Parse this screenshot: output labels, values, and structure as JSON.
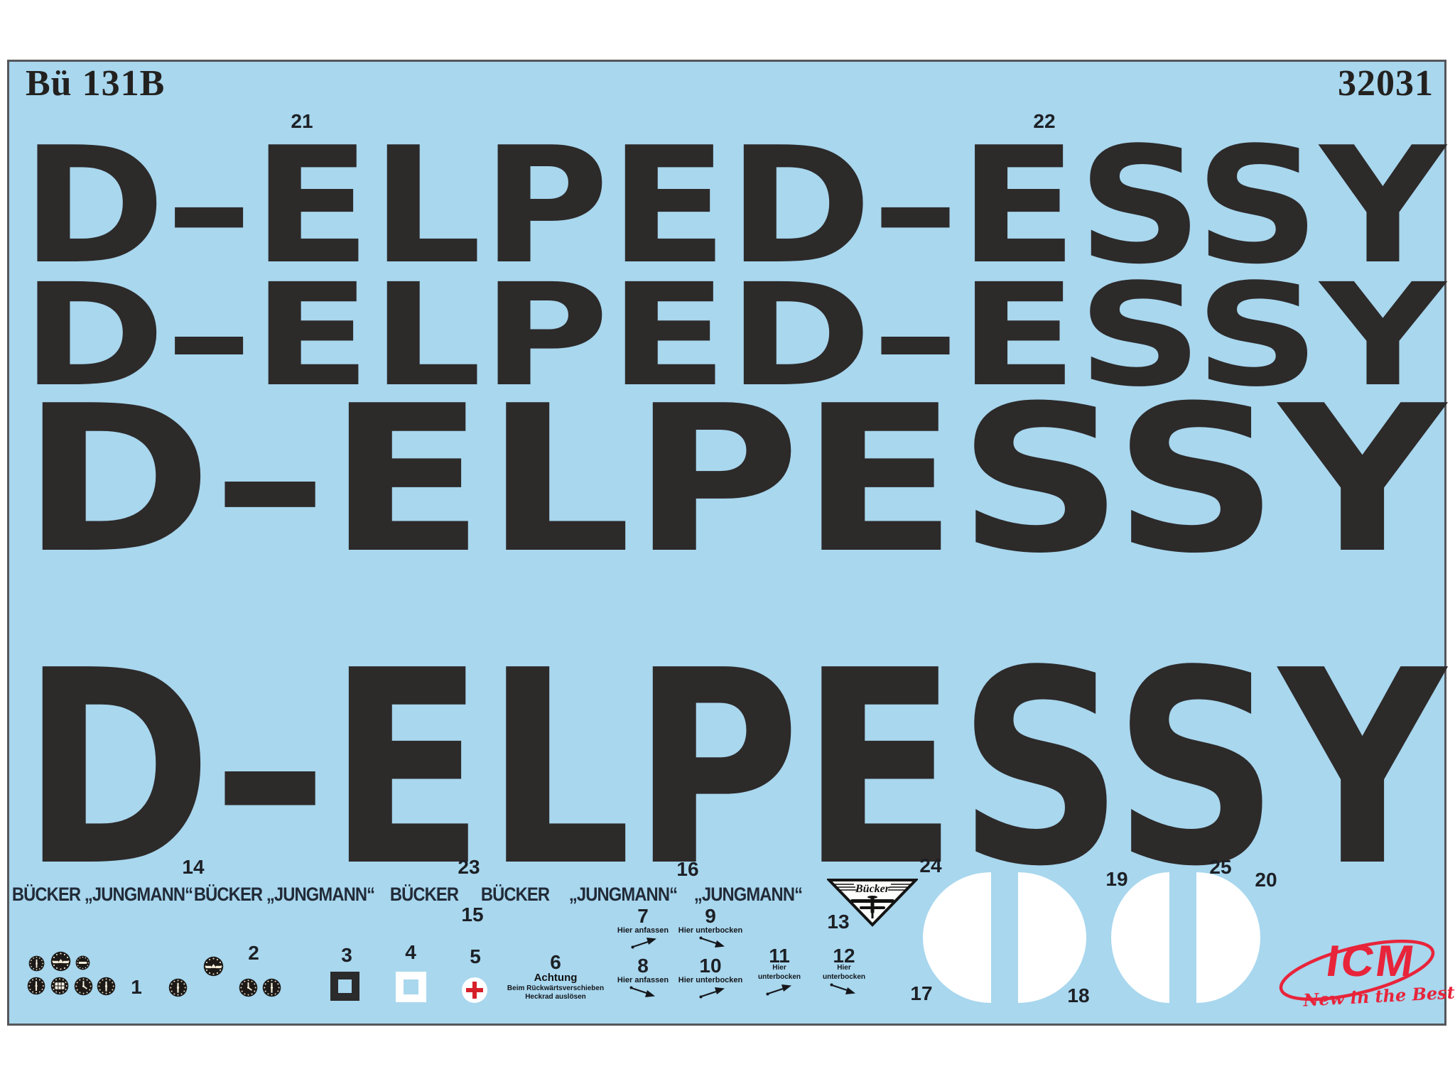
{
  "sheet": {
    "title": "Bü 131B",
    "product_code": "32031",
    "colors": {
      "film_blue": "#a8d7ee",
      "ink_black": "#2d2a2a",
      "brand_red": "#e8243a",
      "cross_red": "#d5202a"
    }
  },
  "registration_rows": [
    {
      "text": "D–ELPED–ESSY"
    },
    {
      "text": "D–ELPED–ESSY"
    },
    {
      "text": "D–ELPESSY"
    },
    {
      "text": "D–ELPESSY"
    }
  ],
  "numbers": {
    "n1": "1",
    "n2": "2",
    "n3": "3",
    "n4": "4",
    "n5": "5",
    "n6": "6",
    "n7": "7",
    "n8": "8",
    "n9": "9",
    "n10": "10",
    "n11": "11",
    "n12": "12",
    "n13": "13",
    "n14": "14",
    "n15": "15",
    "n16": "16",
    "n17": "17",
    "n18": "18",
    "n19": "19",
    "n20": "20",
    "n21": "21",
    "n22": "22",
    "n23": "23",
    "n24": "24",
    "n25": "25"
  },
  "labels": {
    "bucker_jungmann": "BÜCKER „JUNGMANN“",
    "bucker": "BÜCKER",
    "jungmann": "„JUNGMANN“",
    "hier_anfassen": "Hier anfassen",
    "hier_unterbocken": "Hier unterbocken",
    "hier": "Hier",
    "unterbocken": "unterbocken",
    "achtung": "Achtung",
    "achtung_line1": "Beim Rückwärtsverschieben",
    "achtung_line2": "Heckrad auslösen"
  },
  "badge": {
    "name": "Bücker"
  },
  "brand": {
    "name": "ICM",
    "slogan": "New in the Best"
  },
  "instruments": {
    "types": [
      "dial",
      "horizon",
      "bar",
      "dial",
      "grid",
      "clock",
      "dial",
      "dial",
      "horizon",
      "clock",
      "dial"
    ]
  }
}
